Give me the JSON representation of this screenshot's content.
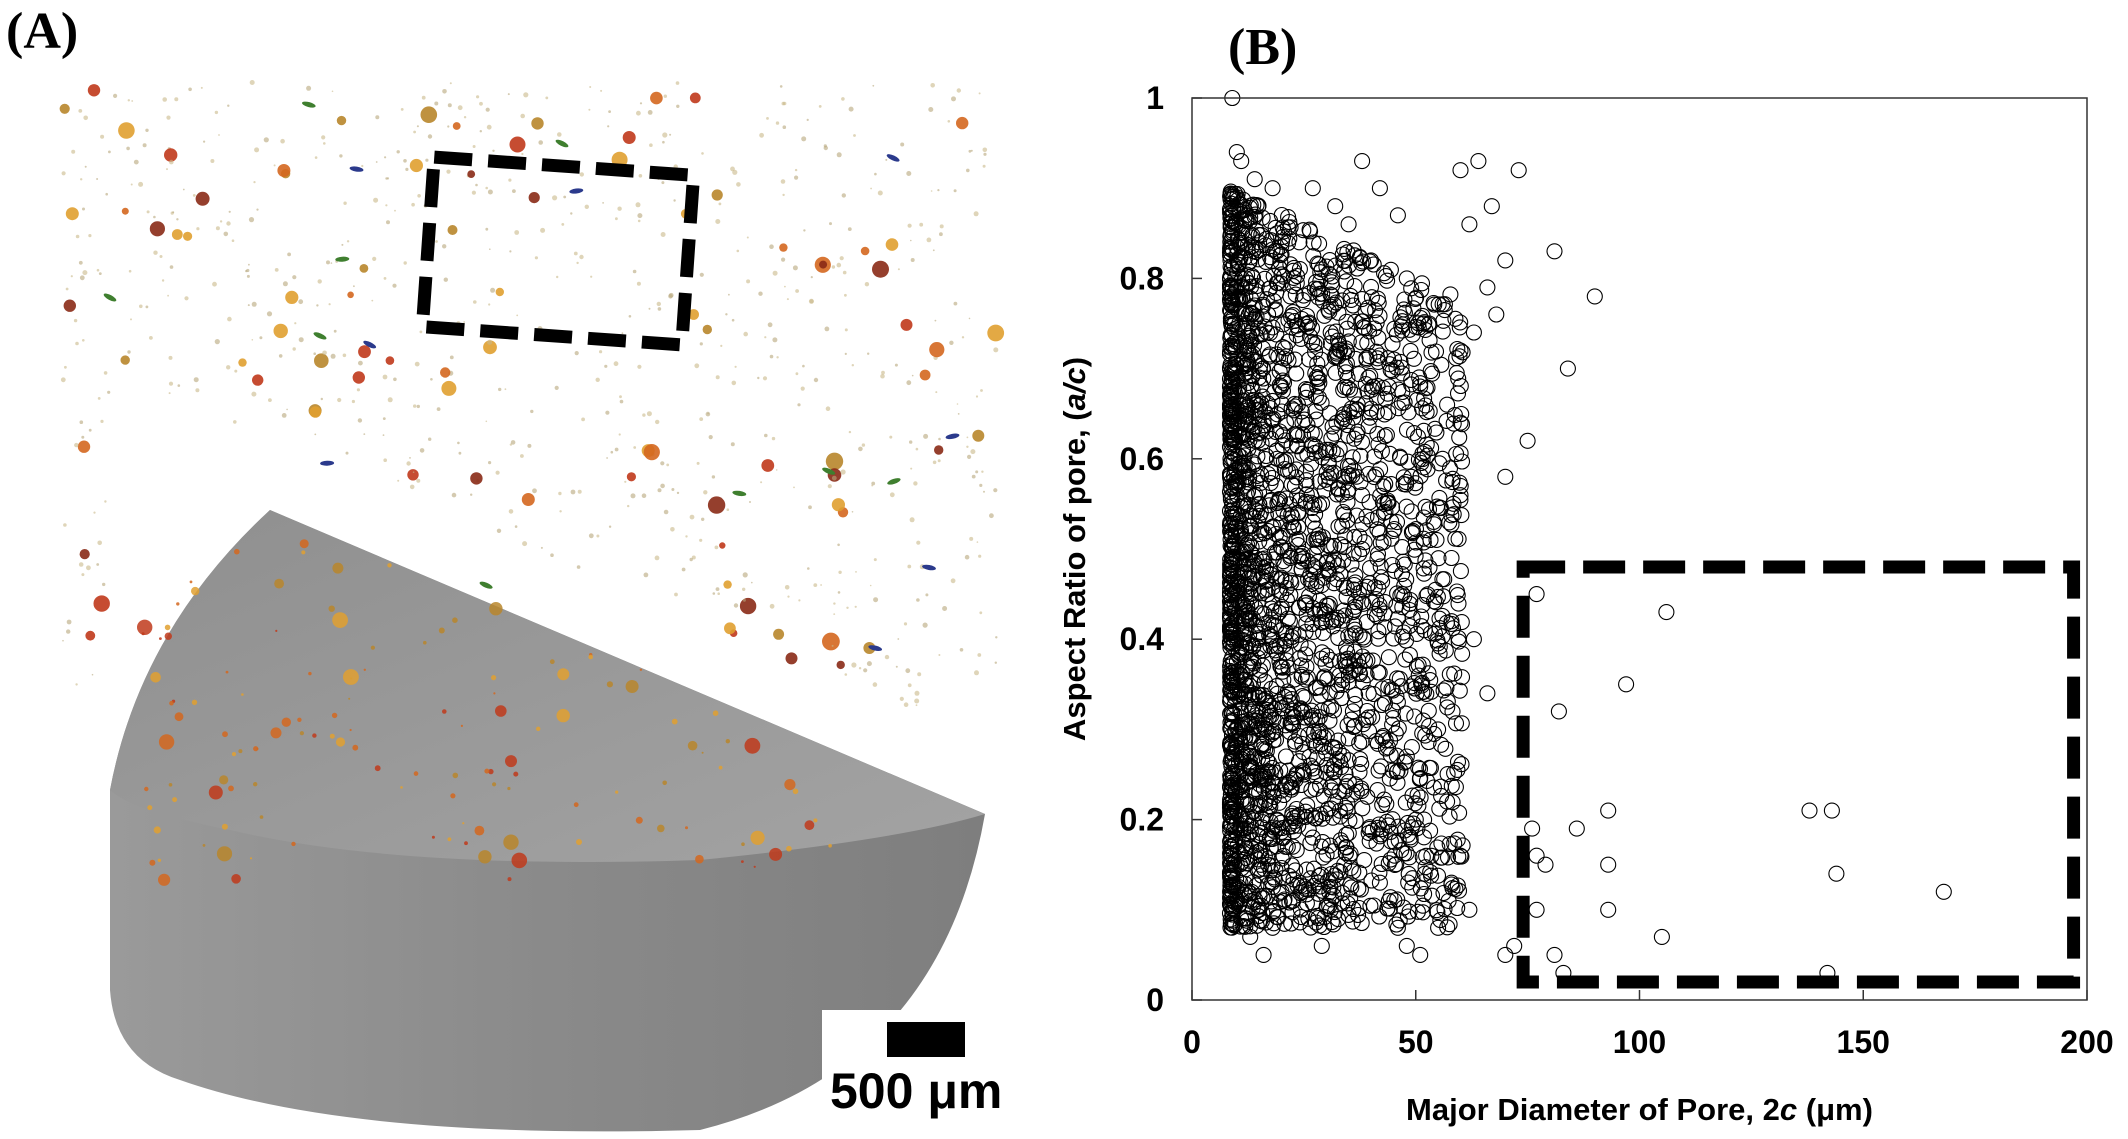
{
  "panels": {
    "a_label": "(A)",
    "b_label": "(B)"
  },
  "figure_a": {
    "scale_bar_label": "500 μm",
    "highlight_box_style": "dashed",
    "pore_colors": [
      "#c0391b",
      "#d4671f",
      "#b8862b",
      "#e0a030",
      "#8a2a16",
      "#2b3a8c",
      "#3f7f2f"
    ]
  },
  "chart_data": {
    "type": "scatter",
    "title": "",
    "xlabel": "Major Diameter of Pore, 2c (μm)",
    "ylabel": "Aspect Ratio of pore, (a/c)",
    "xlim": [
      0,
      200
    ],
    "ylim": [
      0,
      1
    ],
    "xticks": [
      0,
      50,
      100,
      150,
      200
    ],
    "yticks": [
      0,
      0.2,
      0.4,
      0.6,
      0.8,
      1
    ],
    "marker": "open-circle",
    "grid": false,
    "legend": "none",
    "highlight_region": {
      "x": [
        74,
        197
      ],
      "y": [
        0.02,
        0.48
      ],
      "style": "dashed"
    },
    "series": [
      {
        "points": [
          [
            9,
            1.0
          ],
          [
            10,
            0.94
          ],
          [
            11,
            0.93
          ],
          [
            73,
            0.92
          ],
          [
            81,
            0.83
          ],
          [
            90,
            0.78
          ],
          [
            84,
            0.7
          ],
          [
            70,
            0.58
          ],
          [
            75,
            0.62
          ],
          [
            58,
            0.49
          ],
          [
            63,
            0.4
          ],
          [
            52,
            0.41
          ],
          [
            66,
            0.34
          ],
          [
            77,
            0.45
          ],
          [
            106,
            0.43
          ],
          [
            97,
            0.35
          ],
          [
            82,
            0.32
          ],
          [
            93,
            0.21
          ],
          [
            86,
            0.19
          ],
          [
            76,
            0.19
          ],
          [
            77,
            0.16
          ],
          [
            93,
            0.15
          ],
          [
            79,
            0.15
          ],
          [
            77,
            0.1
          ],
          [
            93,
            0.1
          ],
          [
            81,
            0.05
          ],
          [
            70,
            0.05
          ],
          [
            72,
            0.06
          ],
          [
            83,
            0.03
          ],
          [
            105,
            0.07
          ],
          [
            142,
            0.03
          ],
          [
            138,
            0.21
          ],
          [
            143,
            0.21
          ],
          [
            144,
            0.14
          ],
          [
            168,
            0.12
          ],
          [
            60,
            0.92
          ],
          [
            64,
            0.93
          ],
          [
            62,
            0.86
          ],
          [
            67,
            0.88
          ],
          [
            70,
            0.82
          ],
          [
            66,
            0.79
          ],
          [
            68,
            0.76
          ],
          [
            60,
            0.72
          ],
          [
            63,
            0.74
          ],
          [
            57,
            0.66
          ],
          [
            60,
            0.64
          ],
          [
            56,
            0.6
          ],
          [
            54,
            0.53
          ],
          [
            58,
            0.42
          ],
          [
            55,
            0.3
          ],
          [
            57,
            0.22
          ],
          [
            60,
            0.16
          ],
          [
            62,
            0.1
          ],
          [
            55,
            0.08
          ],
          [
            58,
            0.13
          ],
          [
            52,
            0.14
          ],
          [
            51,
            0.05
          ],
          [
            48,
            0.06
          ],
          [
            46,
            0.08
          ],
          [
            44,
            0.11
          ],
          [
            42,
            0.13
          ],
          [
            50,
            0.2
          ],
          [
            48,
            0.27
          ],
          [
            46,
            0.33
          ],
          [
            44,
            0.38
          ],
          [
            47,
            0.45
          ],
          [
            45,
            0.52
          ],
          [
            43,
            0.55
          ],
          [
            49,
            0.58
          ],
          [
            51,
            0.68
          ],
          [
            53,
            0.75
          ],
          [
            48,
            0.8
          ],
          [
            46,
            0.87
          ],
          [
            42,
            0.9
          ],
          [
            38,
            0.93
          ],
          [
            35,
            0.86
          ],
          [
            40,
            0.82
          ],
          [
            36,
            0.77
          ],
          [
            39,
            0.71
          ],
          [
            37,
            0.63
          ],
          [
            34,
            0.58
          ],
          [
            38,
            0.5
          ],
          [
            36,
            0.43
          ],
          [
            33,
            0.36
          ],
          [
            35,
            0.29
          ],
          [
            32,
            0.22
          ],
          [
            34,
            0.15
          ],
          [
            31,
            0.1
          ],
          [
            29,
            0.06
          ],
          [
            26,
            0.09
          ],
          [
            24,
            0.13
          ],
          [
            27,
            0.18
          ],
          [
            25,
            0.25
          ],
          [
            28,
            0.31
          ],
          [
            26,
            0.39
          ],
          [
            29,
            0.46
          ],
          [
            27,
            0.53
          ],
          [
            30,
            0.61
          ],
          [
            28,
            0.68
          ],
          [
            31,
            0.74
          ],
          [
            29,
            0.81
          ],
          [
            32,
            0.88
          ],
          [
            27,
            0.9
          ],
          [
            24,
            0.84
          ],
          [
            22,
            0.78
          ],
          [
            23,
            0.71
          ],
          [
            21,
            0.64
          ],
          [
            23,
            0.57
          ],
          [
            22,
            0.49
          ],
          [
            20,
            0.41
          ],
          [
            22,
            0.33
          ],
          [
            21,
            0.27
          ],
          [
            19,
            0.2
          ],
          [
            20,
            0.12
          ],
          [
            18,
            0.08
          ],
          [
            16,
            0.05
          ],
          [
            17,
            0.15
          ],
          [
            18,
            0.24
          ],
          [
            17,
            0.33
          ],
          [
            18,
            0.44
          ],
          [
            17,
            0.52
          ],
          [
            19,
            0.6
          ],
          [
            18,
            0.69
          ],
          [
            17,
            0.76
          ],
          [
            19,
            0.83
          ],
          [
            18,
            0.9
          ],
          [
            14,
            0.91
          ],
          [
            15,
            0.84
          ],
          [
            14,
            0.77
          ],
          [
            15,
            0.69
          ],
          [
            14,
            0.62
          ],
          [
            15,
            0.55
          ],
          [
            14,
            0.47
          ],
          [
            15,
            0.39
          ],
          [
            14,
            0.31
          ],
          [
            15,
            0.23
          ],
          [
            14,
            0.16
          ],
          [
            15,
            0.1
          ],
          [
            13,
            0.07
          ],
          [
            12,
            0.12
          ],
          [
            12,
            0.19
          ],
          [
            12,
            0.27
          ],
          [
            12,
            0.35
          ],
          [
            12,
            0.43
          ],
          [
            12,
            0.5
          ],
          [
            12,
            0.58
          ],
          [
            12,
            0.66
          ],
          [
            12,
            0.73
          ],
          [
            12,
            0.8
          ],
          [
            12,
            0.87
          ],
          [
            10,
            0.86
          ],
          [
            10,
            0.79
          ],
          [
            10,
            0.71
          ],
          [
            10,
            0.64
          ],
          [
            10,
            0.56
          ],
          [
            10,
            0.49
          ],
          [
            10,
            0.42
          ],
          [
            10,
            0.35
          ],
          [
            10,
            0.28
          ],
          [
            10,
            0.21
          ],
          [
            10,
            0.15
          ],
          [
            11,
            0.09
          ],
          [
            9,
            0.6
          ],
          [
            9,
            0.5
          ],
          [
            9,
            0.4
          ],
          [
            9,
            0.7
          ]
        ]
      }
    ]
  }
}
